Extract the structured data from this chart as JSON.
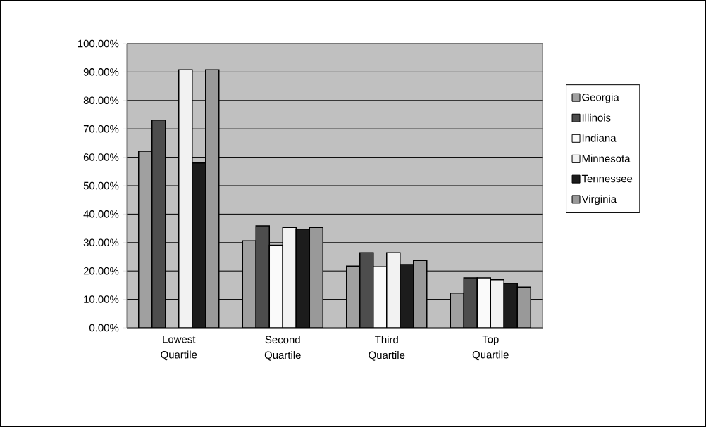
{
  "chart_data": {
    "type": "bar",
    "categories": [
      "Lowest Quartile",
      "Second Quartile",
      "Third Quartile",
      "Top Quartile"
    ],
    "series": [
      {
        "name": "Georgia",
        "color": "#a0a0a0",
        "values": [
          62.1,
          30.6,
          21.7,
          12.2
        ]
      },
      {
        "name": "Illinois",
        "color": "#4d4d4d",
        "values": [
          73.1,
          35.9,
          26.4,
          17.6
        ]
      },
      {
        "name": "Indiana",
        "color": "#fafafa",
        "values": [
          null,
          29.1,
          21.5,
          17.6
        ]
      },
      {
        "name": "Minnesota",
        "color": "#f2f2f2",
        "values": [
          90.8,
          35.3,
          26.4,
          16.9
        ]
      },
      {
        "name": "Tennessee",
        "color": "#1c1c1c",
        "values": [
          58.0,
          34.7,
          22.3,
          15.6
        ]
      },
      {
        "name": "Virginia",
        "color": "#999999",
        "values": [
          90.8,
          35.3,
          23.7,
          14.3
        ]
      }
    ],
    "ylim": [
      0,
      100
    ],
    "yticks": [
      {
        "value": 0,
        "label": "0.00%"
      },
      {
        "value": 10,
        "label": "10.00%"
      },
      {
        "value": 20,
        "label": "20.00%"
      },
      {
        "value": 30,
        "label": "30.00%"
      },
      {
        "value": 40,
        "label": "40.00%"
      },
      {
        "value": 50,
        "label": "50.00%"
      },
      {
        "value": 60,
        "label": "60.00%"
      },
      {
        "value": 70,
        "label": "70.00%"
      },
      {
        "value": 80,
        "label": "80.00%"
      },
      {
        "value": 90,
        "label": "90.00%"
      },
      {
        "value": 100,
        "label": "100.00%"
      }
    ],
    "grid": "y",
    "legend": "right"
  }
}
